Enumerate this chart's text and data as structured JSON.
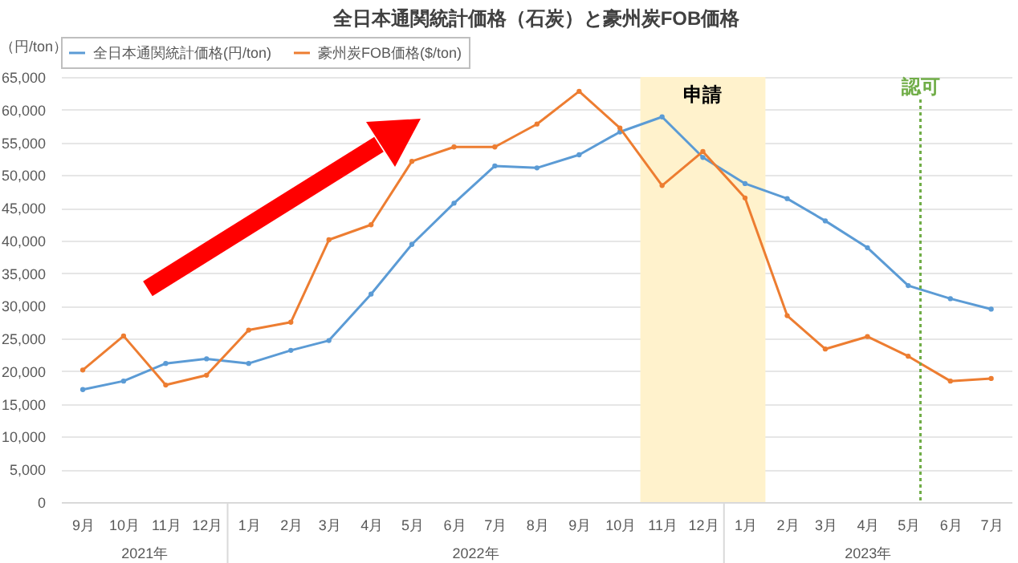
{
  "chart_data": {
    "type": "line",
    "title": "全日本通関統計価格（石炭）と豪州炭FOB価格",
    "ylabel": "（円/ton）",
    "x": [
      "2021-09",
      "2021-10",
      "2021-11",
      "2021-12",
      "2022-01",
      "2022-02",
      "2022-03",
      "2022-04",
      "2022-05",
      "2022-06",
      "2022-07",
      "2022-08",
      "2022-09",
      "2022-10",
      "2022-11",
      "2022-12",
      "2023-01",
      "2023-02",
      "2023-03",
      "2023-04",
      "2023-05",
      "2023-06",
      "2023-07"
    ],
    "xlim": [
      "2021-08-16",
      "2023-07-16"
    ],
    "xticks": [
      {
        "value": "2021-09",
        "label": "9月"
      },
      {
        "value": "2021-10",
        "label": "10月"
      },
      {
        "value": "2021-11",
        "label": "11月"
      },
      {
        "value": "2021-12",
        "label": "12月"
      },
      {
        "value": "2022-01",
        "label": "1月"
      },
      {
        "value": "2022-02",
        "label": "2月"
      },
      {
        "value": "2022-03",
        "label": "3月"
      },
      {
        "value": "2022-04",
        "label": "4月"
      },
      {
        "value": "2022-05",
        "label": "5月"
      },
      {
        "value": "2022-06",
        "label": "6月"
      },
      {
        "value": "2022-07",
        "label": "7月"
      },
      {
        "value": "2022-08",
        "label": "8月"
      },
      {
        "value": "2022-09",
        "label": "9月"
      },
      {
        "value": "2022-10",
        "label": "10月"
      },
      {
        "value": "2022-11",
        "label": "11月"
      },
      {
        "value": "2022-12",
        "label": "12月"
      },
      {
        "value": "2023-01",
        "label": "1月"
      },
      {
        "value": "2023-02",
        "label": "2月"
      },
      {
        "value": "2023-03",
        "label": "3月"
      },
      {
        "value": "2023-04",
        "label": "4月"
      },
      {
        "value": "2023-05",
        "label": "5月"
      },
      {
        "value": "2023-06",
        "label": "6月"
      },
      {
        "value": "2023-07",
        "label": "7月"
      }
    ],
    "series": [
      {
        "name": "全日本通関統計価格(円/ton)",
        "color": "#5b9bd5",
        "values": [
          17200,
          18500,
          21200,
          21900,
          21200,
          23200,
          24700,
          31800,
          39400,
          45700,
          51400,
          51100,
          53100,
          56600,
          58900,
          52700,
          48700,
          46400,
          43000,
          38900,
          33100,
          31100,
          29500
        ]
      },
      {
        "name": "豪州炭FOB価格($/ton)",
        "color": "#ed7d31",
        "values": [
          20200,
          25400,
          17900,
          19400,
          26300,
          27500,
          40100,
          42400,
          52100,
          54300,
          54300,
          57800,
          62800,
          57200,
          48400,
          53600,
          46500,
          28500,
          23400,
          25300,
          22300,
          18500,
          18900
        ]
      }
    ],
    "ylim": [
      0,
      65000
    ],
    "yticks": [
      {
        "value": 0,
        "label": "0"
      },
      {
        "value": 5000,
        "label": "5,000"
      },
      {
        "value": 10000,
        "label": "10,000"
      },
      {
        "value": 15000,
        "label": "15,000"
      },
      {
        "value": 20000,
        "label": "20,000"
      },
      {
        "value": 25000,
        "label": "25,000"
      },
      {
        "value": 30000,
        "label": "30,000"
      },
      {
        "value": 35000,
        "label": "35,000"
      },
      {
        "value": 40000,
        "label": "40,000"
      },
      {
        "value": 45000,
        "label": "45,000"
      },
      {
        "value": 50000,
        "label": "50,000"
      },
      {
        "value": 55000,
        "label": "55,000"
      },
      {
        "value": 60000,
        "label": "60,000"
      },
      {
        "value": 65000,
        "label": "65,000"
      }
    ],
    "bands": [
      {
        "axis": "x",
        "from": "2022-10-16",
        "to": "2023-01-16",
        "label": "申請",
        "color": "#fff2cc"
      }
    ],
    "ref_lines": [
      {
        "axis": "x",
        "value": "2023-05-10",
        "label": "認可",
        "color": "#70ad47",
        "line_style": "dotted"
      }
    ],
    "annotations": [
      "2021年",
      "2022年",
      "2023年"
    ],
    "grid": "y",
    "legend": "top",
    "marker": "circle",
    "line_style": "solid"
  }
}
